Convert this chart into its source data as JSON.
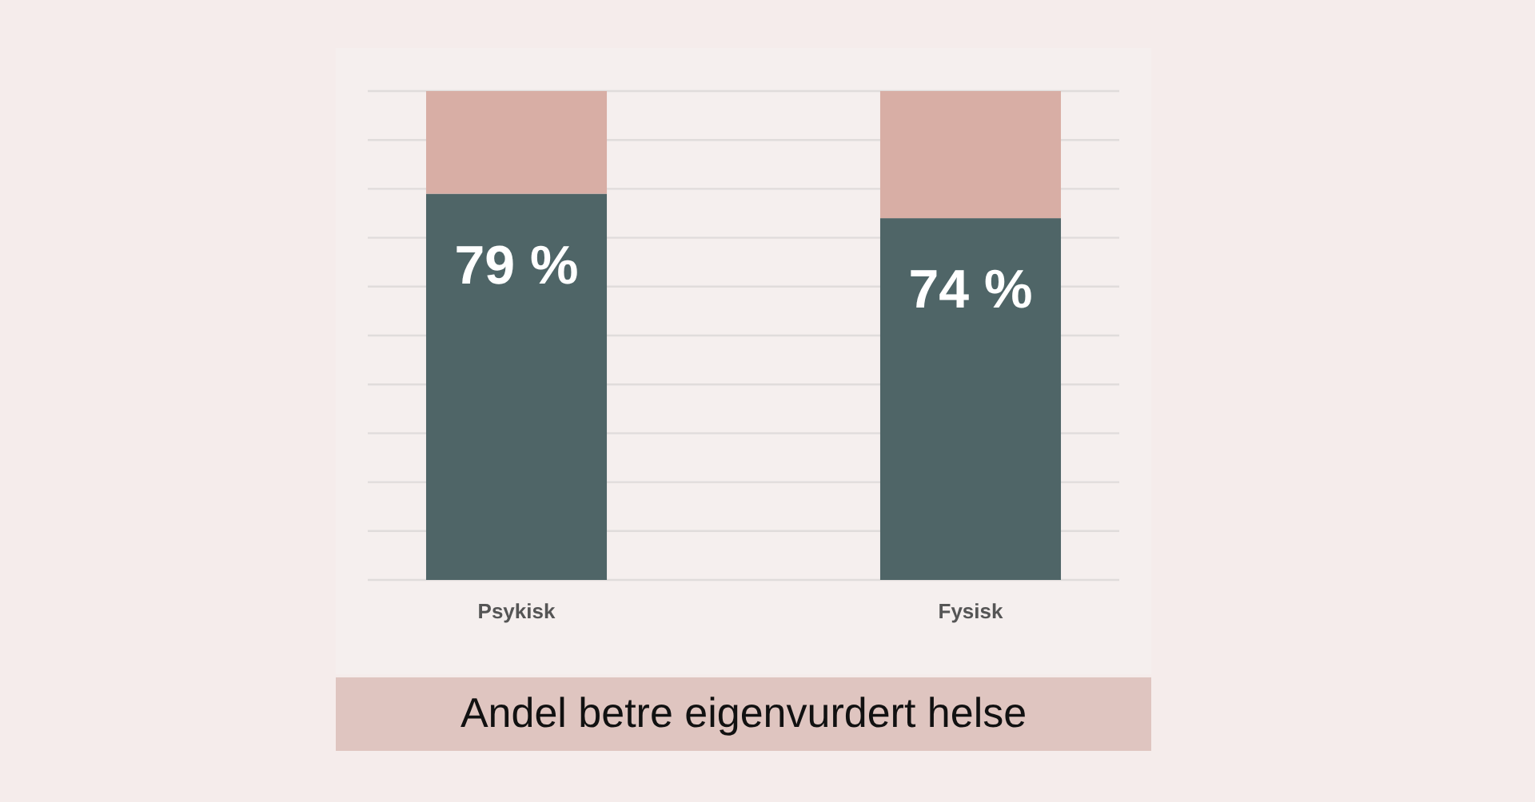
{
  "chart_data": {
    "type": "bar",
    "title": "Andel betre eigenvurdert helse",
    "categories": [
      "Psykisk",
      "Fysisk"
    ],
    "stacked": true,
    "series": [
      {
        "color": "#4f6567",
        "values": [
          79,
          74
        ],
        "value_labels": [
          "79 %",
          "74 %"
        ]
      },
      {
        "color": "#d8aea5",
        "values": [
          21,
          26
        ]
      }
    ],
    "ylim": [
      0,
      100
    ],
    "yticks": [
      {
        "value": 0,
        "label": null
      },
      {
        "value": 10,
        "label": null
      },
      {
        "value": 20,
        "label": null
      },
      {
        "value": 30,
        "label": null
      },
      {
        "value": 40,
        "label": null
      },
      {
        "value": 50,
        "label": null
      },
      {
        "value": 60,
        "label": null
      },
      {
        "value": 70,
        "label": null
      },
      {
        "value": 80,
        "label": null
      },
      {
        "value": 90,
        "label": null
      },
      {
        "value": 100,
        "label": null
      }
    ],
    "grid": "y",
    "tick_labels": "x"
  }
}
